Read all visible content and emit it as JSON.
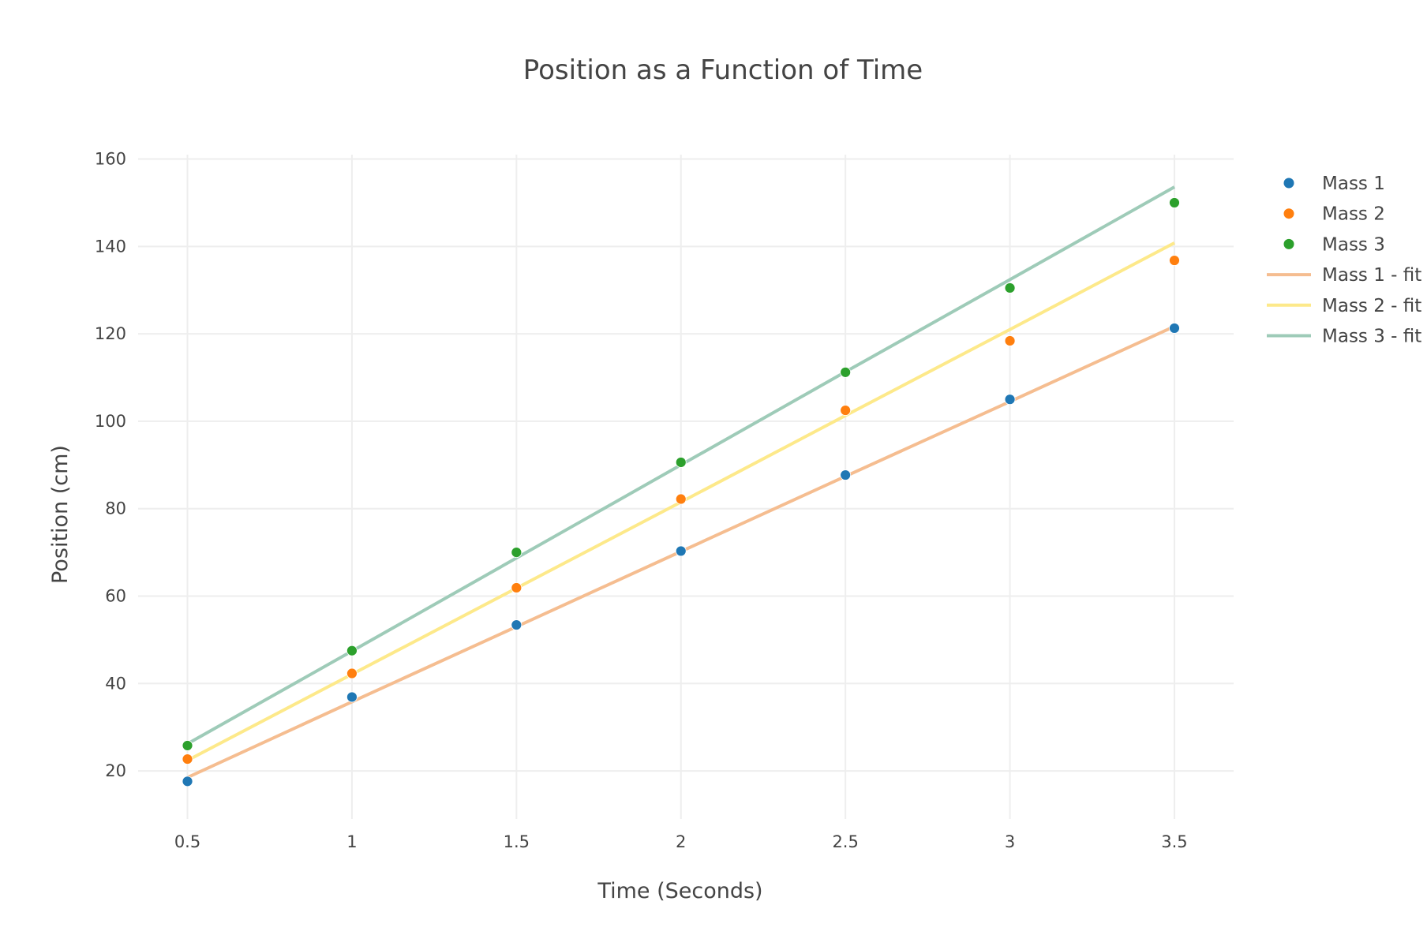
{
  "chart_data": {
    "type": "scatter",
    "title": "Position as a Function of Time",
    "xlabel": "Time (Seconds)",
    "ylabel": "Position (cm)",
    "xlim": [
      0.35,
      3.68
    ],
    "ylim": [
      9,
      161
    ],
    "x_ticks": [
      0.5,
      1,
      1.5,
      2,
      2.5,
      3,
      3.5
    ],
    "x_tick_labels": [
      "0.5",
      "1",
      "1.5",
      "2",
      "2.5",
      "3",
      "3.5"
    ],
    "y_ticks": [
      20,
      40,
      60,
      80,
      100,
      120,
      140,
      160
    ],
    "y_tick_labels": [
      "20",
      "40",
      "60",
      "80",
      "100",
      "120",
      "140",
      "160"
    ],
    "grid": true,
    "legend_position": "right",
    "x": [
      0.5,
      1,
      1.5,
      2,
      2.5,
      3,
      3.5
    ],
    "series": [
      {
        "name": "Mass 1",
        "mode": "markers",
        "color": "#1f77b4",
        "values": [
          17.6,
          36.9,
          53.4,
          70.3,
          87.7,
          105.0,
          121.3
        ]
      },
      {
        "name": "Mass 2",
        "mode": "markers",
        "color": "#ff7f0e",
        "values": [
          22.7,
          42.3,
          61.9,
          82.2,
          102.5,
          118.4,
          136.8
        ]
      },
      {
        "name": "Mass 3",
        "mode": "markers",
        "color": "#2ca02c",
        "values": [
          25.8,
          47.5,
          70.0,
          90.6,
          111.2,
          130.5,
          150.0
        ]
      },
      {
        "name": "Mass 1 - fit",
        "mode": "lines",
        "color": "#f5bd90",
        "values": [
          18.5,
          35.8,
          53.0,
          70.2,
          87.4,
          104.5,
          121.7
        ]
      },
      {
        "name": "Mass 2 - fit",
        "mode": "lines",
        "color": "#fde98a",
        "values": [
          22.4,
          42.1,
          61.8,
          81.5,
          101.3,
          121.0,
          140.8
        ]
      },
      {
        "name": "Mass 3 - fit",
        "mode": "lines",
        "color": "#9ecbb8",
        "values": [
          26.2,
          47.4,
          68.7,
          90.0,
          111.3,
          132.4,
          153.6
        ]
      }
    ]
  }
}
